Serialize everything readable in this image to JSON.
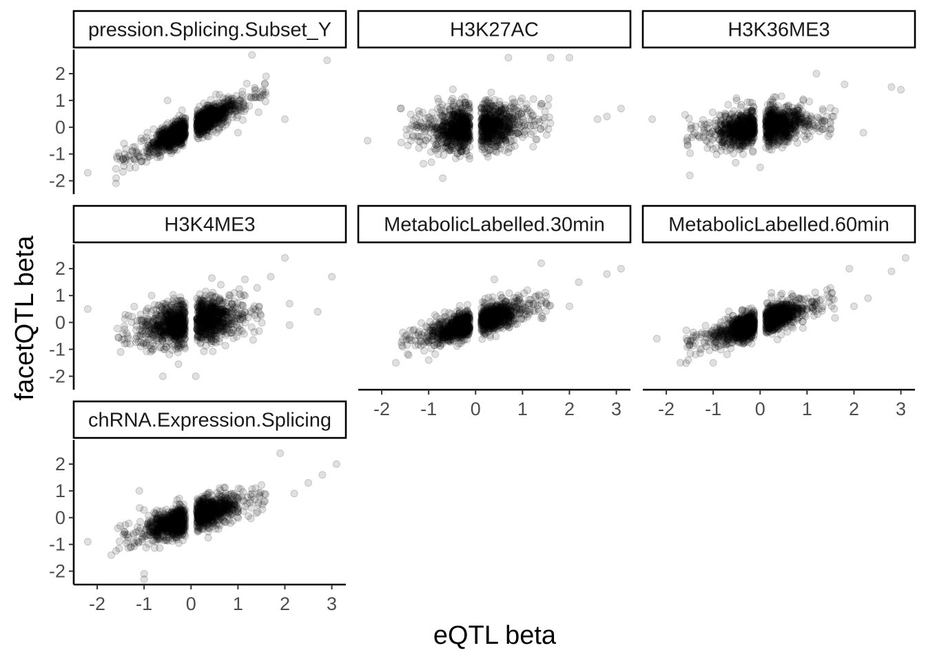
{
  "chart_data": {
    "type": "scatter",
    "xlabel": "eQTL beta",
    "ylabel": "facetQTL beta",
    "xlim": [
      -2.5,
      3.3
    ],
    "ylim": [
      -2.5,
      2.9
    ],
    "x_ticks": [
      -2,
      -1,
      0,
      1,
      2,
      3
    ],
    "y_ticks": [
      -2,
      -1,
      0,
      1,
      2
    ],
    "x_tick_labels": [
      "-2",
      "-1",
      "0",
      "1",
      "2",
      "3"
    ],
    "y_tick_labels": [
      "-2",
      "-1",
      "0",
      "1",
      "2"
    ],
    "grid": false,
    "legend": "none",
    "point_color": "#000000",
    "point_alpha": 0.12,
    "facets": [
      {
        "title": "pression.Splicing.Subset_Y",
        "slope": 0.85,
        "spread": 0.24,
        "points": [
          [
            -2.2,
            -1.7
          ],
          [
            -1.6,
            -2.1
          ],
          [
            2.9,
            2.5
          ],
          [
            1.3,
            2.7
          ],
          [
            2.0,
            0.3
          ],
          [
            1.0,
            -0.2
          ],
          [
            -0.5,
            1.0
          ],
          [
            1.6,
            1.9
          ]
        ]
      },
      {
        "title": "H3K27AC",
        "slope": 0.15,
        "spread": 0.42,
        "points": [
          [
            -2.3,
            -0.5
          ],
          [
            2.6,
            0.3
          ],
          [
            3.1,
            0.7
          ],
          [
            0.7,
            2.6
          ],
          [
            1.6,
            2.6
          ],
          [
            2.0,
            2.6
          ],
          [
            -0.7,
            -1.9
          ],
          [
            -1.6,
            0.7
          ],
          [
            2.8,
            0.4
          ]
        ]
      },
      {
        "title": "H3K36ME3",
        "slope": 0.22,
        "spread": 0.34,
        "points": [
          [
            -2.3,
            0.3
          ],
          [
            2.8,
            1.5
          ],
          [
            3.0,
            1.4
          ],
          [
            1.2,
            2.0
          ],
          [
            -1.5,
            -1.8
          ],
          [
            0.0,
            -1.5
          ],
          [
            -0.5,
            1.0
          ],
          [
            2.2,
            -0.2
          ],
          [
            1.8,
            1.6
          ]
        ]
      },
      {
        "title": "H3K4ME3",
        "slope": 0.28,
        "spread": 0.42,
        "points": [
          [
            -2.2,
            0.5
          ],
          [
            2.0,
            2.4
          ],
          [
            3.0,
            1.7
          ],
          [
            2.7,
            0.4
          ],
          [
            2.1,
            -0.1
          ],
          [
            -0.6,
            -2.0
          ],
          [
            0.1,
            -2.0
          ],
          [
            -1.5,
            -1.1
          ],
          [
            2.1,
            0.7
          ],
          [
            1.7,
            1.7
          ]
        ]
      },
      {
        "title": "MetabolicLabelled.30min",
        "slope": 0.5,
        "spread": 0.25,
        "points": [
          [
            -1.7,
            -1.5
          ],
          [
            2.8,
            1.8
          ],
          [
            3.1,
            2.0
          ],
          [
            1.4,
            2.2
          ],
          [
            -1.0,
            -1.4
          ],
          [
            2.2,
            1.5
          ],
          [
            2.0,
            0.6
          ],
          [
            0.4,
            1.6
          ]
        ]
      },
      {
        "title": "MetabolicLabelled.60min",
        "slope": 0.52,
        "spread": 0.25,
        "points": [
          [
            -1.7,
            -1.5
          ],
          [
            2.8,
            1.9
          ],
          [
            3.1,
            2.4
          ],
          [
            1.9,
            2.0
          ],
          [
            -1.0,
            -1.5
          ],
          [
            2.0,
            0.6
          ],
          [
            2.3,
            0.9
          ],
          [
            -2.2,
            -0.6
          ]
        ]
      },
      {
        "title": "chRNA.Expression.Splicing",
        "slope": 0.55,
        "spread": 0.27,
        "points": [
          [
            -2.2,
            -0.9
          ],
          [
            -1.7,
            -1.4
          ],
          [
            2.8,
            1.6
          ],
          [
            3.1,
            2.0
          ],
          [
            1.9,
            2.4
          ],
          [
            -1.0,
            -2.3
          ],
          [
            -1.0,
            -2.1
          ],
          [
            2.2,
            0.9
          ],
          [
            2.5,
            1.3
          ],
          [
            -1.1,
            1.0
          ]
        ]
      }
    ]
  }
}
